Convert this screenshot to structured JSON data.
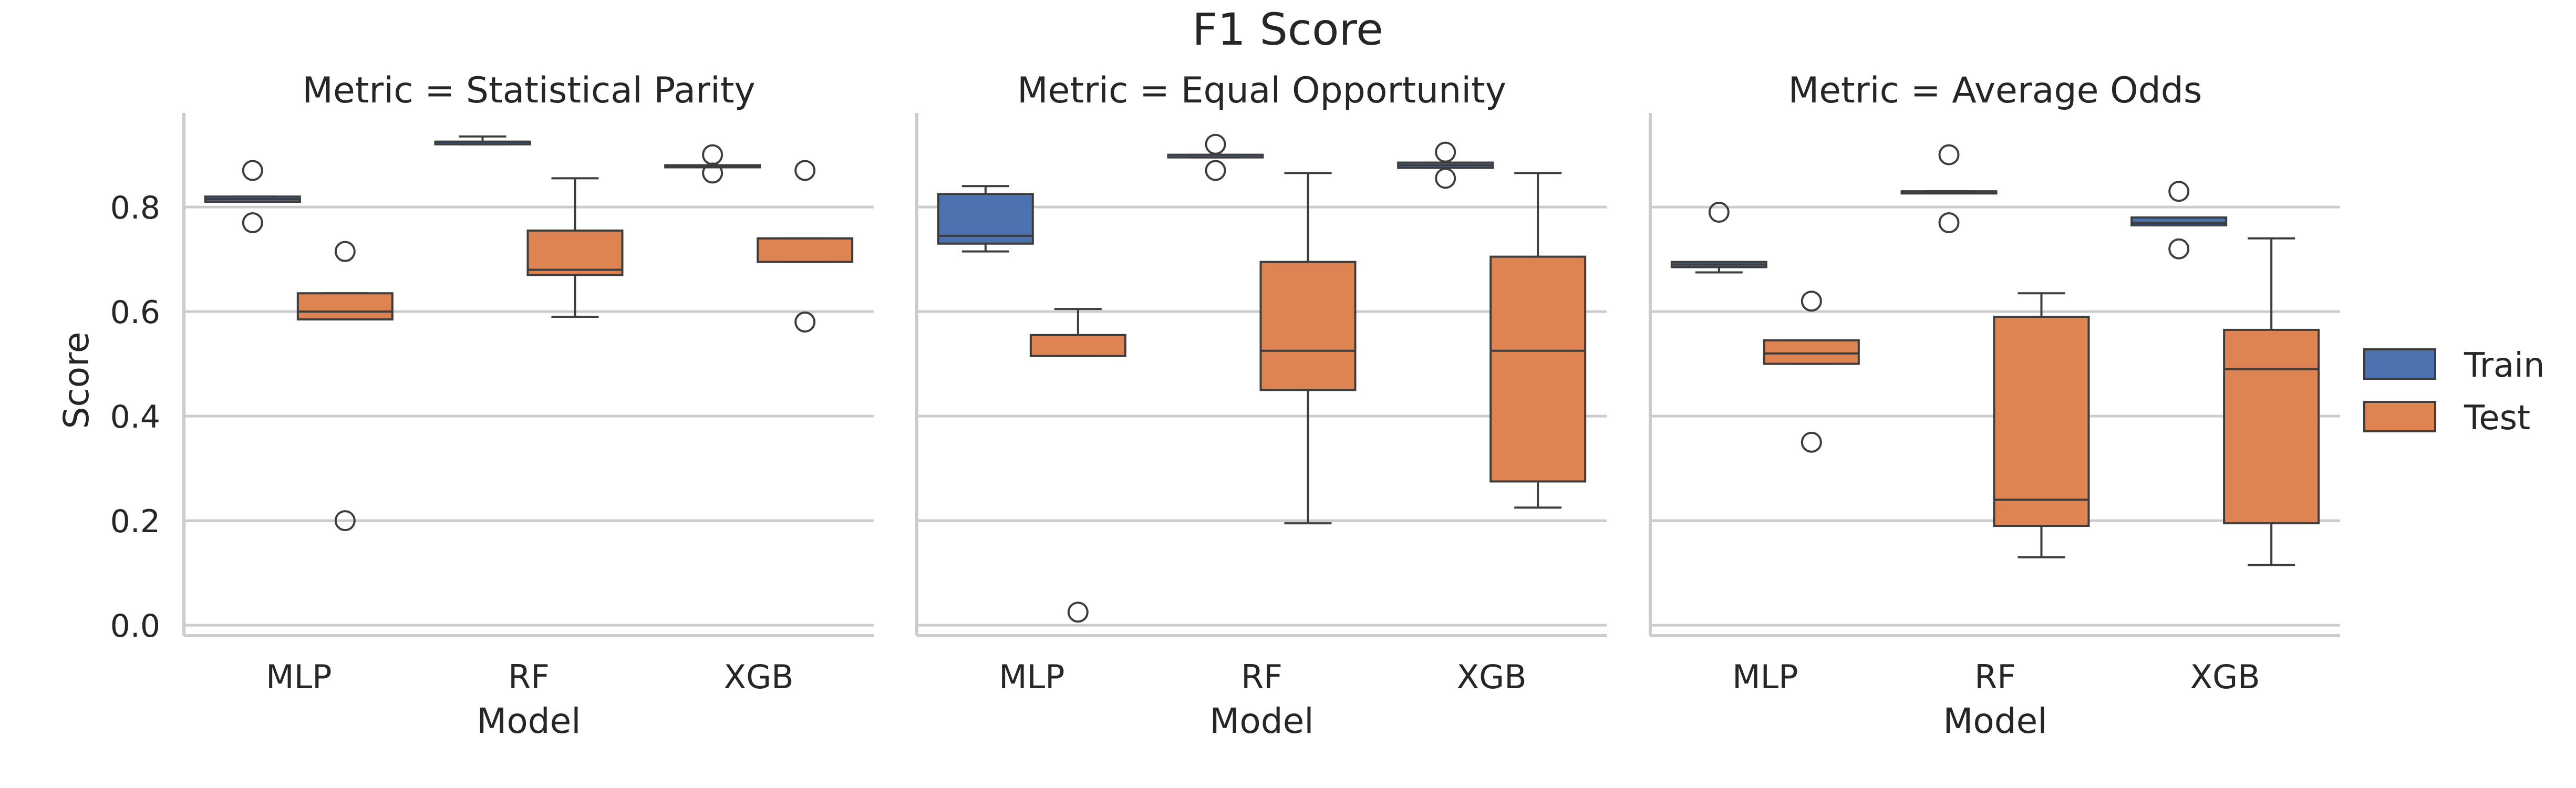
{
  "chart_data": {
    "type": "box",
    "title": "F1 Score",
    "ylabel": "Score",
    "xlabel": "Model",
    "ylim": [
      -0.02,
      0.98
    ],
    "yticks": [
      0.0,
      0.2,
      0.4,
      0.6,
      0.8
    ],
    "ytick_labels": [
      "0.0",
      "0.2",
      "0.4",
      "0.6",
      "0.8"
    ],
    "categories": [
      "MLP",
      "RF",
      "XGB"
    ],
    "grid": true,
    "legend_position": "right",
    "legend": [
      {
        "name": "Train",
        "color": "#4c72b0"
      },
      {
        "name": "Test",
        "color": "#dd8452"
      }
    ],
    "panels": [
      {
        "title": "Metric = Statistical Parity",
        "boxes": [
          {
            "model": "MLP",
            "series": "Train",
            "whislo": 0.81,
            "q1": 0.81,
            "med": 0.815,
            "q3": 0.82,
            "whishi": 0.82,
            "fliers": [
              0.87,
              0.77
            ]
          },
          {
            "model": "MLP",
            "series": "Test",
            "whislo": 0.585,
            "q1": 0.585,
            "med": 0.6,
            "q3": 0.635,
            "whishi": 0.635,
            "fliers": [
              0.715,
              0.2
            ]
          },
          {
            "model": "RF",
            "series": "Train",
            "whislo": 0.92,
            "q1": 0.92,
            "med": 0.925,
            "q3": 0.925,
            "whishi": 0.935,
            "fliers": []
          },
          {
            "model": "RF",
            "series": "Test",
            "whislo": 0.59,
            "q1": 0.67,
            "med": 0.68,
            "q3": 0.755,
            "whishi": 0.855,
            "fliers": []
          },
          {
            "model": "XGB",
            "series": "Train",
            "whislo": 0.88,
            "q1": 0.88,
            "med": 0.88,
            "q3": 0.88,
            "whishi": 0.88,
            "fliers": [
              0.9,
              0.865
            ]
          },
          {
            "model": "XGB",
            "series": "Test",
            "whislo": 0.695,
            "q1": 0.695,
            "med": 0.74,
            "q3": 0.74,
            "whishi": 0.74,
            "fliers": [
              0.87,
              0.58
            ]
          }
        ]
      },
      {
        "title": "Metric = Equal Opportunity",
        "boxes": [
          {
            "model": "MLP",
            "series": "Train",
            "whislo": 0.715,
            "q1": 0.73,
            "med": 0.745,
            "q3": 0.825,
            "whishi": 0.84,
            "fliers": []
          },
          {
            "model": "MLP",
            "series": "Test",
            "whislo": 0.515,
            "q1": 0.515,
            "med": 0.555,
            "q3": 0.555,
            "whishi": 0.605,
            "fliers": [
              0.025
            ]
          },
          {
            "model": "RF",
            "series": "Train",
            "whislo": 0.895,
            "q1": 0.895,
            "med": 0.895,
            "q3": 0.9,
            "whishi": 0.9,
            "fliers": [
              0.92,
              0.87
            ]
          },
          {
            "model": "RF",
            "series": "Test",
            "whislo": 0.195,
            "q1": 0.45,
            "med": 0.525,
            "q3": 0.695,
            "whishi": 0.865,
            "fliers": []
          },
          {
            "model": "XGB",
            "series": "Train",
            "whislo": 0.875,
            "q1": 0.875,
            "med": 0.88,
            "q3": 0.885,
            "whishi": 0.885,
            "fliers": [
              0.905,
              0.855
            ]
          },
          {
            "model": "XGB",
            "series": "Test",
            "whislo": 0.225,
            "q1": 0.275,
            "med": 0.525,
            "q3": 0.705,
            "whishi": 0.865,
            "fliers": []
          }
        ]
      },
      {
        "title": "Metric = Average Odds",
        "boxes": [
          {
            "model": "MLP",
            "series": "Train",
            "whislo": 0.675,
            "q1": 0.685,
            "med": 0.69,
            "q3": 0.695,
            "whishi": 0.695,
            "fliers": [
              0.79
            ]
          },
          {
            "model": "MLP",
            "series": "Test",
            "whislo": 0.5,
            "q1": 0.5,
            "med": 0.52,
            "q3": 0.545,
            "whishi": 0.545,
            "fliers": [
              0.62,
              0.35
            ]
          },
          {
            "model": "RF",
            "series": "Train",
            "whislo": 0.83,
            "q1": 0.83,
            "med": 0.83,
            "q3": 0.83,
            "whishi": 0.83,
            "fliers": [
              0.9,
              0.77
            ]
          },
          {
            "model": "RF",
            "series": "Test",
            "whislo": 0.13,
            "q1": 0.19,
            "med": 0.24,
            "q3": 0.59,
            "whishi": 0.635,
            "fliers": []
          },
          {
            "model": "XGB",
            "series": "Train",
            "whislo": 0.765,
            "q1": 0.765,
            "med": 0.77,
            "q3": 0.78,
            "whishi": 0.78,
            "fliers": [
              0.83,
              0.72
            ]
          },
          {
            "model": "XGB",
            "series": "Test",
            "whislo": 0.115,
            "q1": 0.195,
            "med": 0.49,
            "q3": 0.565,
            "whishi": 0.74,
            "fliers": []
          }
        ]
      }
    ]
  }
}
